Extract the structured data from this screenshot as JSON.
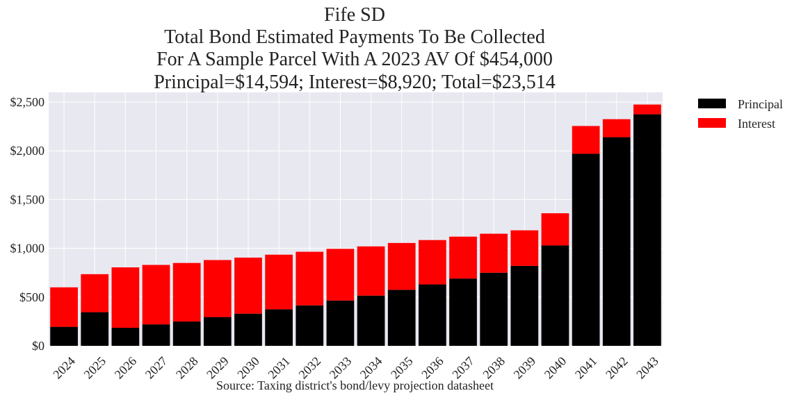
{
  "chart_data": {
    "type": "bar",
    "stacked": true,
    "title_lines": [
      "Fife SD",
      "Total Bond Estimated Payments To Be Collected",
      "For A Sample Parcel With A 2023 AV Of $454,000",
      "Principal=$14,594; Interest=$8,920; Total=$23,514"
    ],
    "categories": [
      "2024",
      "2025",
      "2026",
      "2027",
      "2028",
      "2029",
      "2030",
      "2031",
      "2032",
      "2033",
      "2034",
      "2035",
      "2036",
      "2037",
      "2038",
      "2039",
      "2040",
      "2041",
      "2042",
      "2043"
    ],
    "series": [
      {
        "name": "Principal",
        "color": "#000000",
        "values": [
          195,
          345,
          185,
          220,
          250,
          295,
          330,
          375,
          415,
          465,
          515,
          575,
          630,
          690,
          750,
          820,
          1030,
          1970,
          2140,
          2375
        ]
      },
      {
        "name": "Interest",
        "color": "#ff0000",
        "values": [
          405,
          390,
          620,
          610,
          600,
          585,
          575,
          560,
          550,
          530,
          505,
          480,
          455,
          430,
          400,
          365,
          330,
          285,
          185,
          100
        ]
      }
    ],
    "ylim": [
      0,
      2600
    ],
    "yticks": [
      0,
      500,
      1000,
      1500,
      2000,
      2500
    ],
    "ytick_labels": [
      "$0",
      "$500",
      "$1,000",
      "$1,500",
      "$2,000",
      "$2,500"
    ],
    "xlabel": "Source: Taxing district's bond/levy projection datasheet",
    "ylabel": "",
    "grid": true,
    "legend_position": "outside-top-right",
    "plot_background": "#e8e8f0",
    "grid_color": "#ffffff"
  }
}
